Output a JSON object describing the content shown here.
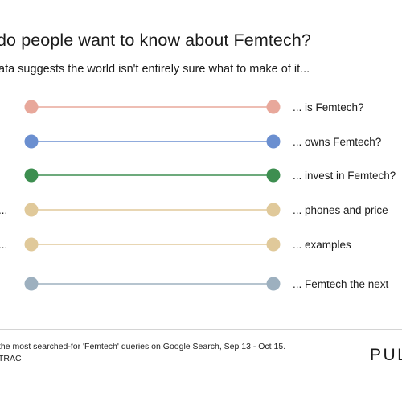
{
  "header": {
    "title": "do people want to know about Femtech?",
    "subtitle": "ata suggests the world isn't entirely sure what to make of it..."
  },
  "chart_data": {
    "type": "dumbbell",
    "rows": [
      {
        "left_label": "",
        "right_label": "... is Femtech?",
        "color": "#e8a89b"
      },
      {
        "left_label": "",
        "right_label": "... owns Femtech?",
        "color": "#6b8fd0"
      },
      {
        "left_label": "",
        "right_label": "... invest in Femtech?",
        "color": "#3d8e50"
      },
      {
        "left_label": "...",
        "right_label": "... phones and price",
        "color": "#e0c99a"
      },
      {
        "left_label": "...",
        "right_label": "... examples",
        "color": "#e0c99a"
      },
      {
        "left_label": "",
        "right_label": "... Femtech the next",
        "color": "#9db0bf"
      }
    ]
  },
  "footer": {
    "note_line1": "the most searched-for 'Femtech' queries on Google Search, Sep 13 - Oct 15.",
    "note_line2": "TRAC",
    "logo": "PUL"
  }
}
